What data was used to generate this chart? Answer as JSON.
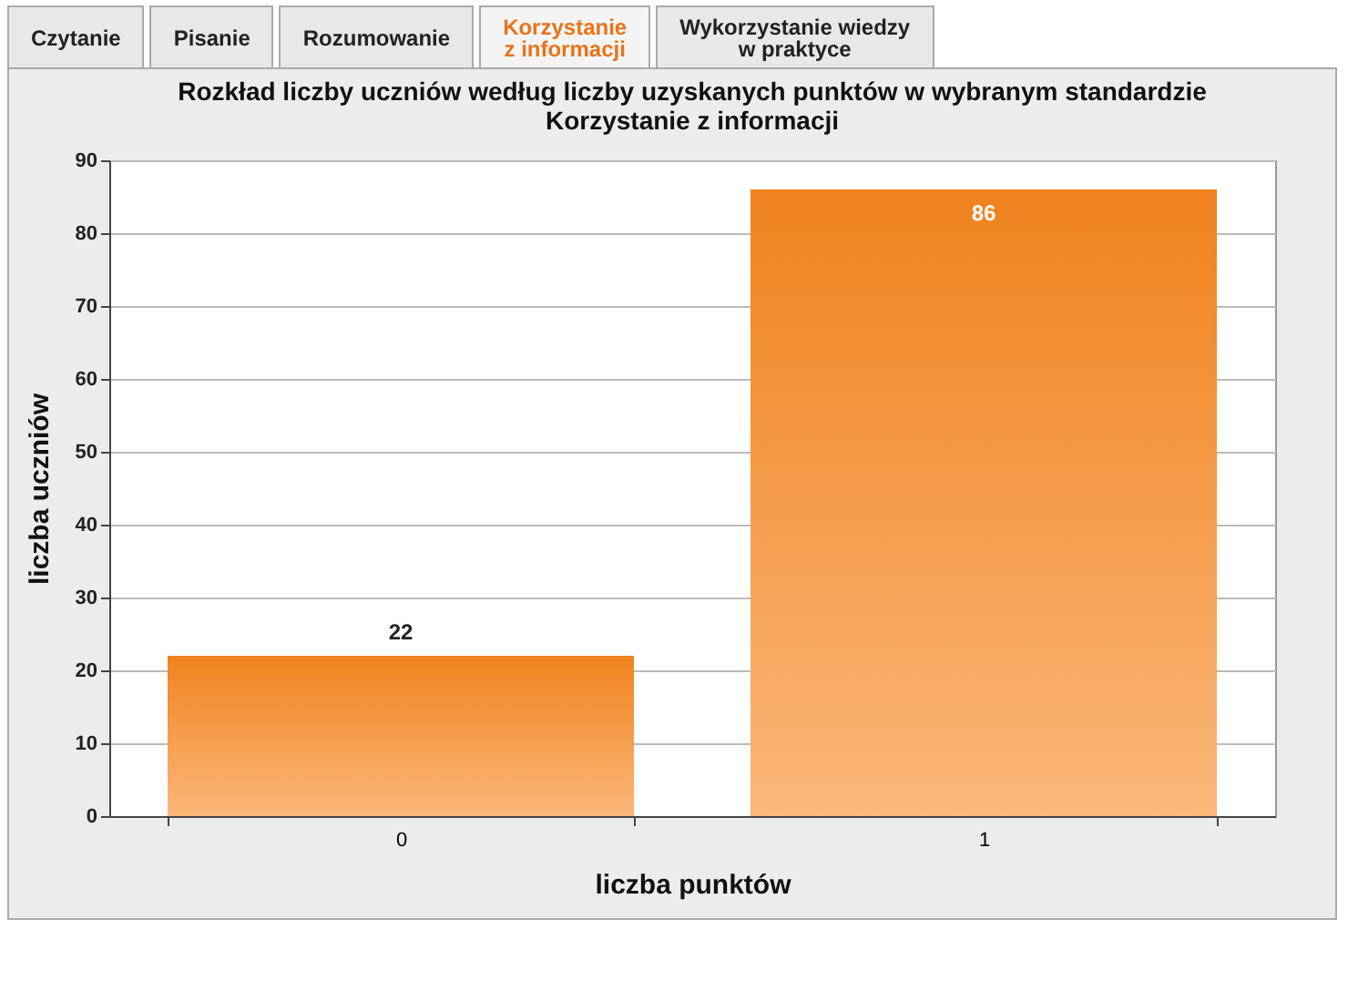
{
  "chart_data": {
    "type": "bar",
    "title": "Rozkład liczby uczniów według liczby uzyskanych punktów w wybranym standardzie\nKorzystanie z informacji",
    "xlabel": "liczba punktów",
    "ylabel": "liczba uczniów",
    "categories": [
      "0",
      "1"
    ],
    "values": [
      22,
      86
    ],
    "color": "#f0821e",
    "ylim": [
      0,
      90
    ],
    "yticks": [
      0,
      10,
      20,
      30,
      40,
      50,
      60,
      70,
      80,
      90
    ],
    "grid": "y",
    "data_labels": true,
    "annotations": [
      "Czytanie",
      "Pisanie",
      "Rozumowanie",
      "Korzystanie\nz informacji",
      "Wykorzystanie wiedzy\nw praktyce"
    ]
  }
}
